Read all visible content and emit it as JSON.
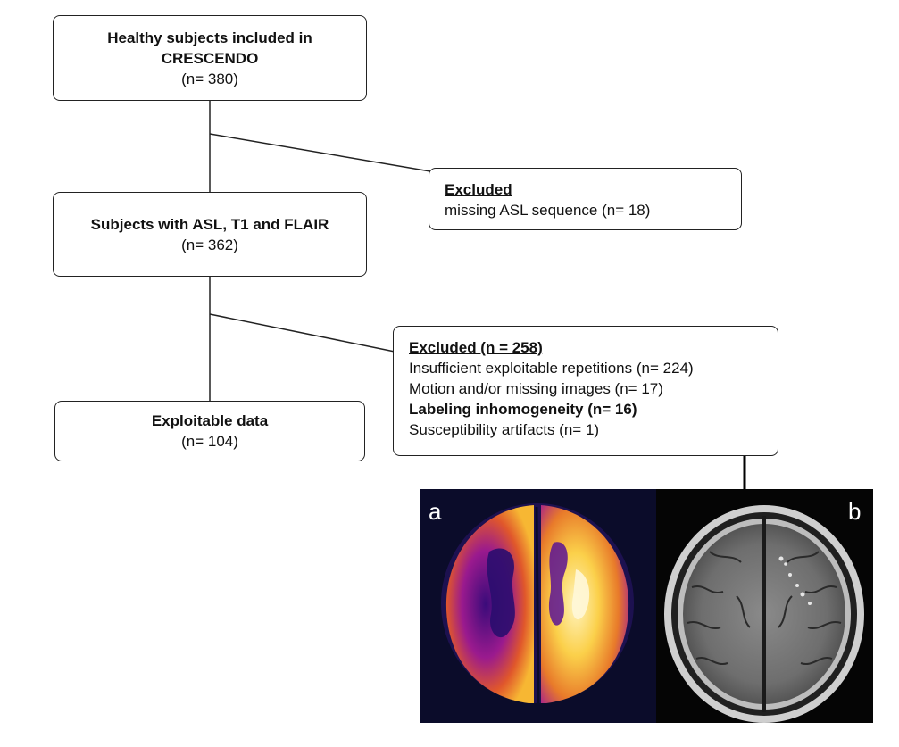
{
  "box1": {
    "title": "Healthy subjects included in CRESCENDO",
    "count": "(n= 380)"
  },
  "box2": {
    "title": "Subjects with ASL, T1 and FLAIR",
    "count": "(n= 362)"
  },
  "box3": {
    "title": "Exploitable data",
    "count": "(n= 104)"
  },
  "excluded1": {
    "heading": "Excluded",
    "items": [
      "missing ASL sequence (n= 18)"
    ]
  },
  "excluded2": {
    "heading": "Excluded (n = 258)",
    "items": [
      "Insufficient exploitable repetitions (n= 224)",
      "Motion and/or missing images (n= 17)",
      "Labeling inhomogeneity (n= 16)",
      "Susceptibility artifacts (n= 1)"
    ]
  },
  "images": {
    "label_a": "a",
    "label_b": "b",
    "colors": {
      "asl_bg": "#0b0c2a",
      "flair_bg": "#050505"
    }
  }
}
